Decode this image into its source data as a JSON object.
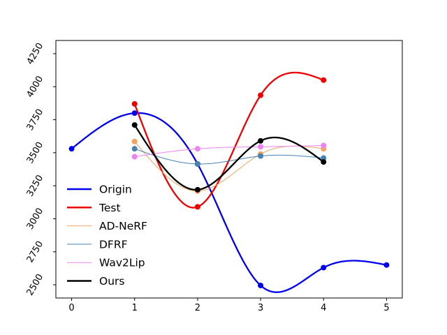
{
  "chart_data": {
    "type": "line",
    "title": "",
    "xlabel": "",
    "ylabel": "",
    "xlim": [
      -0.25,
      5.25
    ],
    "ylim": [
      2400,
      4350
    ],
    "xticks": [
      0,
      1,
      2,
      3,
      4,
      5
    ],
    "yticks": [
      2500,
      2750,
      3000,
      3250,
      3500,
      3750,
      4000,
      4250
    ],
    "ytick_rotation": -60,
    "grid": false,
    "legend": {
      "position": "center-left",
      "frame": false
    },
    "series": [
      {
        "name": "Origin",
        "color": "#0000ee",
        "width": "thick",
        "x": [
          0,
          1,
          2,
          3,
          4,
          5
        ],
        "y": [
          3530,
          3800,
          3415,
          2495,
          2630,
          2650
        ]
      },
      {
        "name": "Test",
        "color": "#ee0000",
        "width": "thick",
        "x": [
          1,
          2,
          3,
          4
        ],
        "y": [
          3870,
          3090,
          3935,
          4050
        ]
      },
      {
        "name": "AD-NeRF",
        "color": "#f4a460",
        "width": "thin",
        "x": [
          1,
          2,
          3,
          4
        ],
        "y": [
          3585,
          3210,
          3490,
          3530
        ]
      },
      {
        "name": "DFRF",
        "color": "#4682b4",
        "width": "thin",
        "x": [
          1,
          2,
          3,
          4
        ],
        "y": [
          3530,
          3415,
          3475,
          3460
        ]
      },
      {
        "name": "Wav2Lip",
        "color": "#ee82ee",
        "width": "thin",
        "x": [
          1,
          2,
          3,
          4
        ],
        "y": [
          3470,
          3530,
          3545,
          3555
        ]
      },
      {
        "name": "Ours",
        "color": "#000000",
        "width": "thick",
        "x": [
          1,
          2,
          3,
          4
        ],
        "y": [
          3710,
          3220,
          3590,
          3430
        ]
      }
    ]
  }
}
